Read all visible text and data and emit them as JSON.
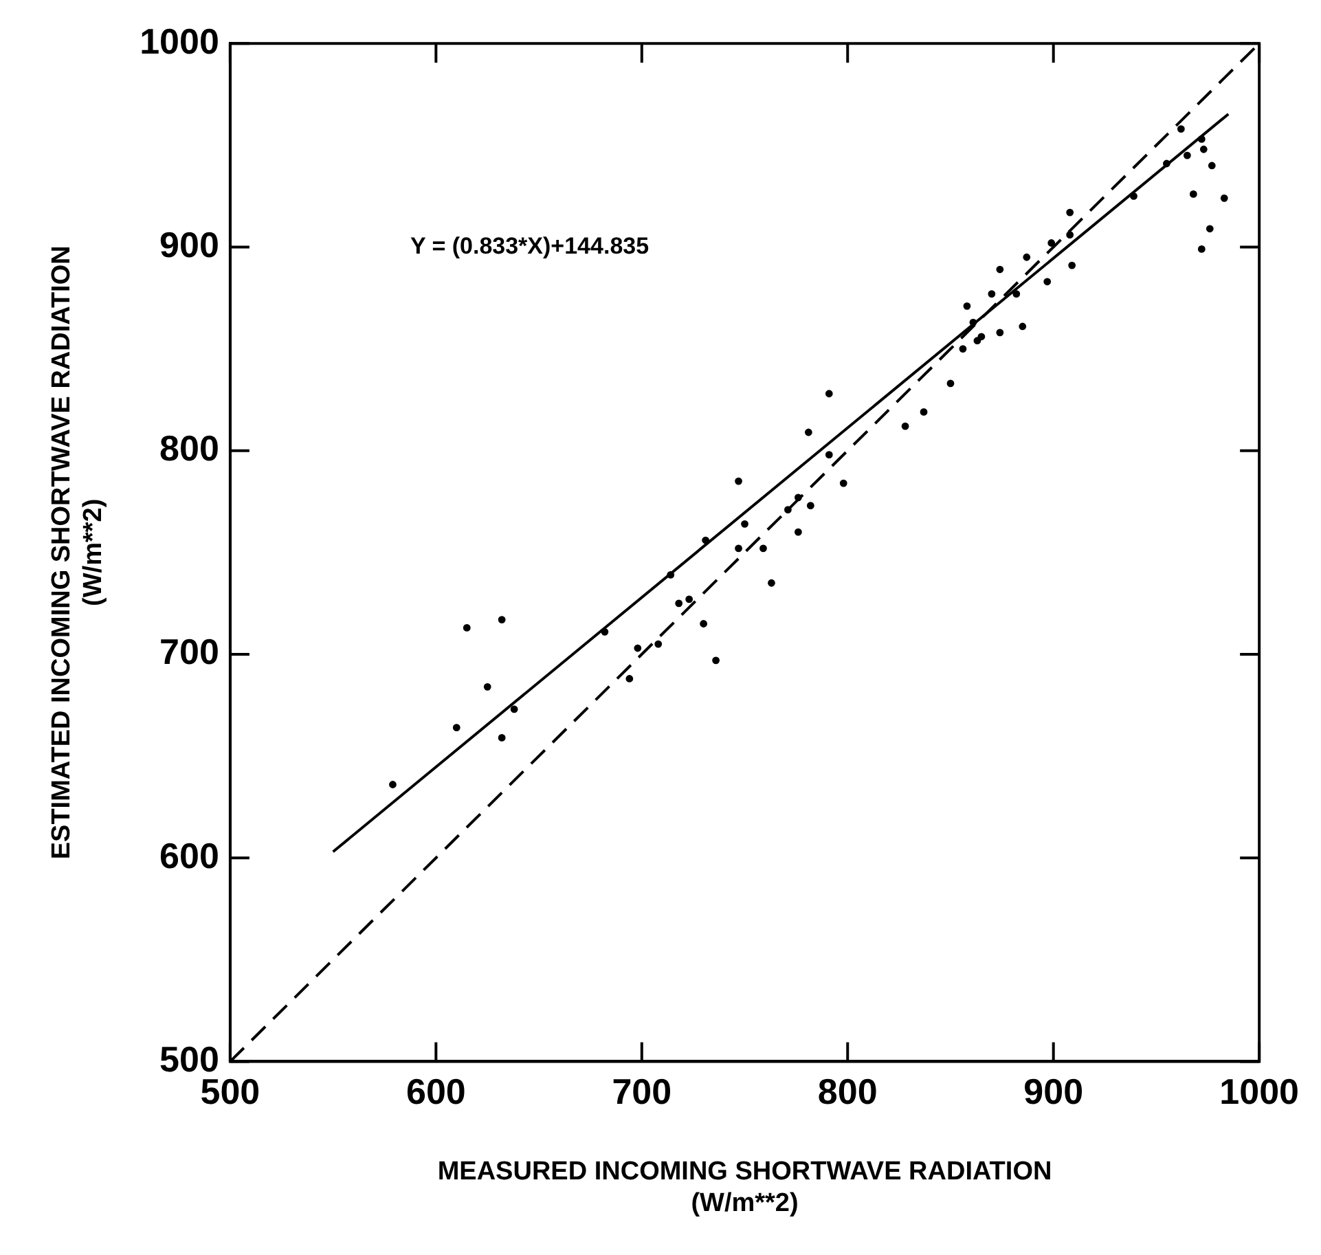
{
  "chart_data": {
    "type": "scatter",
    "xlabel": "MEASURED INCOMING SHORTWAVE RADIATION\n(W/m**2)",
    "ylabel": "ESTIMATED INCOMING SHORTWAVE RADIATION\n(W/m**2)",
    "annotations": [
      "Y = (0.833*X)+144.835"
    ],
    "xlim": [
      500,
      1000
    ],
    "xticks": [
      500,
      600,
      700,
      800,
      900,
      1000
    ],
    "ylim": [
      500,
      1000
    ],
    "yticks": [
      500,
      600,
      700,
      800,
      900,
      1000
    ],
    "grid": false,
    "legend": false,
    "series": [
      {
        "type": "scatter",
        "color": "#000000",
        "marker": "circle",
        "x": [
          579,
          610,
          615,
          625,
          632,
          632,
          638,
          682,
          694,
          698,
          708,
          714,
          718,
          723,
          730,
          731,
          736,
          747,
          747,
          750,
          759,
          763,
          771,
          776,
          776,
          782,
          781,
          791,
          791,
          798,
          828,
          837,
          850,
          856,
          858,
          861,
          863,
          865,
          870,
          874,
          874,
          882,
          885,
          887,
          897,
          899,
          908,
          908,
          909,
          939,
          955,
          962,
          965,
          968,
          972,
          972,
          973,
          976,
          977,
          983
        ],
        "values": [
          636,
          664,
          713,
          684,
          659,
          717,
          673,
          711,
          688,
          703,
          705,
          739,
          725,
          727,
          715,
          756,
          697,
          785,
          752,
          764,
          752,
          735,
          771,
          777,
          760,
          773,
          809,
          828,
          798,
          784,
          812,
          819,
          833,
          850,
          871,
          863,
          854,
          856,
          877,
          889,
          858,
          877,
          861,
          895,
          883,
          902,
          917,
          906,
          891,
          925,
          941,
          958,
          945,
          926,
          953,
          899,
          948,
          909,
          940,
          924
        ]
      },
      {
        "type": "line",
        "color": "#000000",
        "line_style": "solid",
        "x": [
          550,
          985
        ],
        "values": [
          603.0,
          965.3
        ]
      },
      {
        "type": "line",
        "color": "#000000",
        "line_style": "dashed",
        "x": [
          500,
          1000
        ],
        "values": [
          500,
          1000
        ]
      }
    ]
  }
}
